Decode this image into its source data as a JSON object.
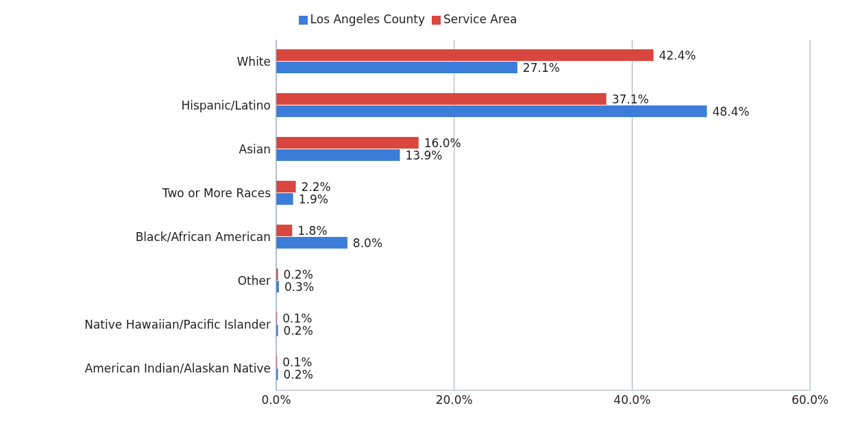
{
  "chart_data": {
    "type": "bar",
    "orientation": "horizontal",
    "categories": [
      "White",
      "Hispanic/Latino",
      "Asian",
      "Two or More Races",
      "Black/African American",
      "Other",
      "Native Hawaiian/Pacific Islander",
      "American Indian/Alaskan Native"
    ],
    "series": [
      {
        "name": "Service Area",
        "color": "#d9463f",
        "values": [
          42.4,
          37.1,
          16.0,
          2.2,
          1.8,
          0.2,
          0.1,
          0.1
        ],
        "value_labels": [
          "42.4%",
          "37.1%",
          "16.0%",
          "2.2%",
          "1.8%",
          "0.2%",
          "0.1%",
          "0.1%"
        ]
      },
      {
        "name": "Los Angeles County",
        "color": "#3b7dd8",
        "values": [
          27.1,
          48.4,
          13.9,
          1.9,
          8.0,
          0.3,
          0.2,
          0.2
        ],
        "value_labels": [
          "27.1%",
          "48.4%",
          "13.9%",
          "1.9%",
          "8.0%",
          "0.3%",
          "0.2%",
          "0.2%"
        ]
      }
    ],
    "xlim": [
      0,
      60
    ],
    "xticks": [
      {
        "value": 0,
        "label": "0.0%"
      },
      {
        "value": 20,
        "label": "20.0%"
      },
      {
        "value": 40,
        "label": "40.0%"
      },
      {
        "value": 60,
        "label": "60.0%"
      }
    ],
    "grid": "x",
    "legend": "top"
  }
}
